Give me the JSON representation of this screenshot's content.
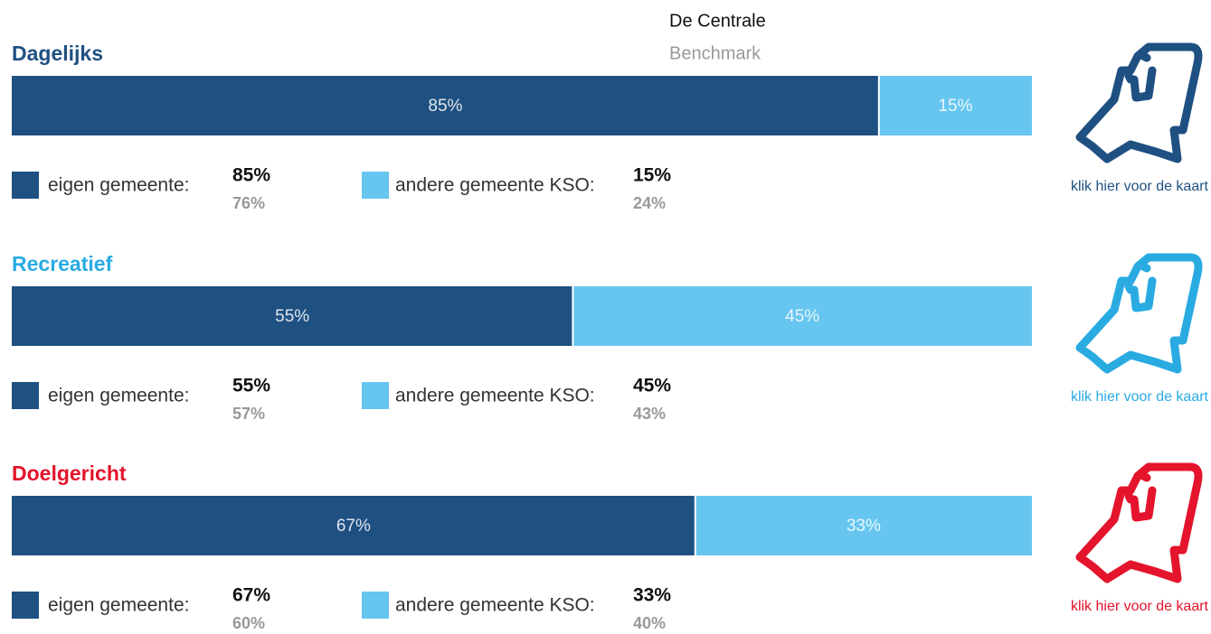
{
  "header": {
    "primary": "De Centrale",
    "secondary": "Benchmark"
  },
  "sections": [
    {
      "title": "Dagelijks",
      "color": "#1f5082",
      "segment_colors": [
        "#1f5082",
        "#66c6ef"
      ],
      "categories": [
        "eigen gemeente:",
        "andere gemeente KSO:"
      ],
      "values": [
        85,
        15
      ],
      "value_labels": [
        "85%",
        "15%"
      ],
      "benchmark_values": [
        76,
        24
      ],
      "benchmark_labels": [
        "76%",
        "24%"
      ],
      "link": "klik hier voor de kaart"
    },
    {
      "title": "Recreatief",
      "color": "#29abe2",
      "segment_colors": [
        "#1f5082",
        "#66c6ef"
      ],
      "categories": [
        "eigen gemeente:",
        "andere gemeente KSO:"
      ],
      "values": [
        55,
        45
      ],
      "value_labels": [
        "55%",
        "45%"
      ],
      "benchmark_values": [
        57,
        43
      ],
      "benchmark_labels": [
        "57%",
        "43%"
      ],
      "link": "klik hier voor de kaart"
    },
    {
      "title": "Doelgericht",
      "color": "#e3142b",
      "segment_colors": [
        "#1f5082",
        "#66c6ef"
      ],
      "categories": [
        "eigen gemeente:",
        "andere gemeente KSO:"
      ],
      "values": [
        67,
        33
      ],
      "value_labels": [
        "67%",
        "33%"
      ],
      "benchmark_values": [
        60,
        40
      ],
      "benchmark_labels": [
        "60%",
        "40%"
      ],
      "link": "klik hier voor de kaart"
    }
  ]
}
